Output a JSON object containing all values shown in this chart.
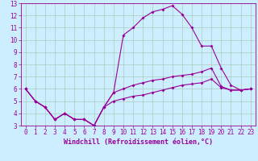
{
  "xlabel": "Windchill (Refroidissement éolien,°C)",
  "bg_color": "#cceeff",
  "line_color": "#990099",
  "grid_color": "#aaccbb",
  "xlim": [
    -0.5,
    23.5
  ],
  "ylim": [
    3,
    13
  ],
  "xticks": [
    0,
    1,
    2,
    3,
    4,
    5,
    6,
    7,
    8,
    9,
    10,
    11,
    12,
    13,
    14,
    15,
    16,
    17,
    18,
    19,
    20,
    21,
    22,
    23
  ],
  "yticks": [
    3,
    4,
    5,
    6,
    7,
    8,
    9,
    10,
    11,
    12,
    13
  ],
  "line1_x": [
    0,
    1,
    2,
    3,
    4,
    5,
    6,
    7,
    8,
    9,
    10,
    11,
    12,
    13,
    14,
    15,
    16,
    17,
    18,
    19,
    20,
    21,
    22,
    23
  ],
  "line1_y": [
    6.0,
    5.0,
    4.5,
    3.5,
    4.0,
    3.5,
    3.5,
    3.0,
    4.5,
    5.7,
    10.4,
    11.0,
    11.8,
    12.3,
    12.5,
    12.8,
    12.1,
    11.0,
    9.5,
    9.5,
    7.7,
    6.3,
    5.9,
    6.0
  ],
  "line2_x": [
    0,
    1,
    2,
    3,
    4,
    5,
    6,
    7,
    8,
    9,
    10,
    11,
    12,
    13,
    14,
    15,
    16,
    17,
    18,
    19,
    20,
    21,
    22,
    23
  ],
  "line2_y": [
    6.0,
    5.0,
    4.5,
    3.5,
    4.0,
    3.5,
    3.5,
    3.0,
    4.5,
    5.7,
    6.0,
    6.3,
    6.5,
    6.7,
    6.8,
    7.0,
    7.1,
    7.2,
    7.4,
    7.7,
    6.2,
    5.9,
    5.9,
    6.0
  ],
  "line3_x": [
    0,
    1,
    2,
    3,
    4,
    5,
    6,
    7,
    8,
    9,
    10,
    11,
    12,
    13,
    14,
    15,
    16,
    17,
    18,
    19,
    20,
    21,
    22,
    23
  ],
  "line3_y": [
    6.0,
    5.0,
    4.5,
    3.5,
    4.0,
    3.5,
    3.5,
    3.0,
    4.5,
    5.0,
    5.2,
    5.4,
    5.5,
    5.7,
    5.9,
    6.1,
    6.3,
    6.4,
    6.5,
    6.8,
    6.1,
    5.9,
    5.9,
    6.0
  ],
  "marker": "D",
  "marker_size": 2,
  "linewidth": 0.8,
  "xlabel_fontsize": 6,
  "tick_fontsize": 5.5
}
